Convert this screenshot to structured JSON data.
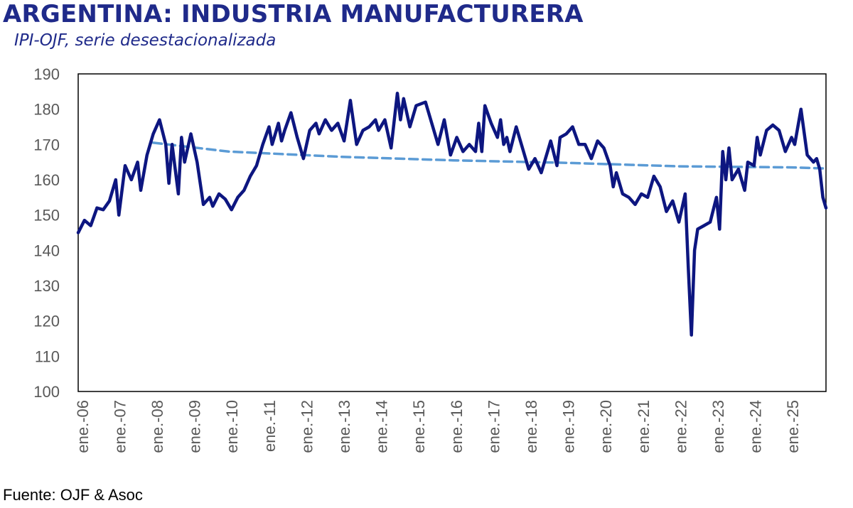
{
  "title": "ARGENTINA: INDUSTRIA MANUFACTURERA",
  "subtitle": "IPI-OJF, serie desestacionalizada",
  "source": "Fuente: OJF & Asoc",
  "colors": {
    "series": "#0d1680",
    "trend": "#5b9bd5",
    "title": "#1f2a8a"
  },
  "chart_data": {
    "type": "line",
    "ylim": [
      100,
      190
    ],
    "yticks": [
      100,
      110,
      120,
      130,
      140,
      150,
      160,
      170,
      180,
      190
    ],
    "xtick_labels": [
      "ene.-06",
      "ene.-07",
      "ene.-08",
      "ene.-09",
      "ene.-10",
      "ene.-11",
      "ene.-12",
      "ene.-13",
      "ene.-14",
      "ene.-15",
      "ene.-16",
      "ene.-17",
      "ene.-18",
      "ene.-19",
      "ene.-20",
      "ene.-21",
      "ene.-22",
      "ene.-23",
      "ene.-24",
      "ene.-25"
    ],
    "x_start": "2006-01",
    "x_end": "2025-12",
    "grid": false,
    "series": [
      {
        "style": "solid",
        "points": [
          [
            "2006-01",
            145
          ],
          [
            "2006-03",
            148.5
          ],
          [
            "2006-05",
            147
          ],
          [
            "2006-07",
            152
          ],
          [
            "2006-09",
            151.5
          ],
          [
            "2006-11",
            154
          ],
          [
            "2007-01",
            160
          ],
          [
            "2007-02",
            150
          ],
          [
            "2007-04",
            164
          ],
          [
            "2007-06",
            160
          ],
          [
            "2007-08",
            165
          ],
          [
            "2007-09",
            157
          ],
          [
            "2007-11",
            167
          ],
          [
            "2008-01",
            173
          ],
          [
            "2008-03",
            177
          ],
          [
            "2008-05",
            170
          ],
          [
            "2008-06",
            159
          ],
          [
            "2008-07",
            170
          ],
          [
            "2008-09",
            156
          ],
          [
            "2008-10",
            172
          ],
          [
            "2008-11",
            165
          ],
          [
            "2009-01",
            173
          ],
          [
            "2009-03",
            165
          ],
          [
            "2009-05",
            153
          ],
          [
            "2009-07",
            155
          ],
          [
            "2009-08",
            152.5
          ],
          [
            "2009-10",
            156
          ],
          [
            "2009-12",
            154.5
          ],
          [
            "2010-02",
            151.5
          ],
          [
            "2010-04",
            155
          ],
          [
            "2010-06",
            157
          ],
          [
            "2010-08",
            161
          ],
          [
            "2010-10",
            164
          ],
          [
            "2010-12",
            170
          ],
          [
            "2011-02",
            175
          ],
          [
            "2011-03",
            170
          ],
          [
            "2011-05",
            176
          ],
          [
            "2011-06",
            171
          ],
          [
            "2011-07",
            174
          ],
          [
            "2011-09",
            179
          ],
          [
            "2011-11",
            172
          ],
          [
            "2012-01",
            166
          ],
          [
            "2012-03",
            174
          ],
          [
            "2012-05",
            176
          ],
          [
            "2012-06",
            173
          ],
          [
            "2012-08",
            177
          ],
          [
            "2012-10",
            174
          ],
          [
            "2012-12",
            176
          ],
          [
            "2013-02",
            171
          ],
          [
            "2013-04",
            182.5
          ],
          [
            "2013-06",
            170
          ],
          [
            "2013-08",
            174
          ],
          [
            "2013-10",
            175
          ],
          [
            "2013-12",
            177
          ],
          [
            "2014-01",
            174
          ],
          [
            "2014-03",
            177
          ],
          [
            "2014-05",
            169
          ],
          [
            "2014-07",
            184.5
          ],
          [
            "2014-08",
            177
          ],
          [
            "2014-09",
            183
          ],
          [
            "2014-11",
            175
          ],
          [
            "2015-01",
            181
          ],
          [
            "2015-04",
            182
          ],
          [
            "2015-06",
            176
          ],
          [
            "2015-08",
            170
          ],
          [
            "2015-10",
            177
          ],
          [
            "2015-12",
            167
          ],
          [
            "2016-02",
            172
          ],
          [
            "2016-04",
            168
          ],
          [
            "2016-06",
            170
          ],
          [
            "2016-08",
            168
          ],
          [
            "2016-09",
            176
          ],
          [
            "2016-10",
            168
          ],
          [
            "2016-11",
            181
          ],
          [
            "2017-01",
            176
          ],
          [
            "2017-03",
            172
          ],
          [
            "2017-04",
            177
          ],
          [
            "2017-05",
            170
          ],
          [
            "2017-06",
            172
          ],
          [
            "2017-07",
            168
          ],
          [
            "2017-09",
            175
          ],
          [
            "2017-11",
            169
          ],
          [
            "2018-01",
            163
          ],
          [
            "2018-03",
            166
          ],
          [
            "2018-05",
            162
          ],
          [
            "2018-07",
            168
          ],
          [
            "2018-08",
            171
          ],
          [
            "2018-10",
            164
          ],
          [
            "2018-11",
            172
          ],
          [
            "2019-01",
            173
          ],
          [
            "2019-03",
            175
          ],
          [
            "2019-05",
            170
          ],
          [
            "2019-07",
            170
          ],
          [
            "2019-09",
            166
          ],
          [
            "2019-11",
            171
          ],
          [
            "2020-01",
            169
          ],
          [
            "2020-03",
            164
          ],
          [
            "2020-04",
            158
          ],
          [
            "2020-05",
            162
          ],
          [
            "2020-07",
            156
          ],
          [
            "2020-09",
            155
          ],
          [
            "2020-11",
            153
          ],
          [
            "2021-01",
            156
          ],
          [
            "2021-03",
            155
          ],
          [
            "2021-05",
            161
          ],
          [
            "2021-07",
            158
          ],
          [
            "2021-09",
            151
          ],
          [
            "2021-11",
            154
          ],
          [
            "2022-01",
            148
          ],
          [
            "2022-03",
            156
          ],
          [
            "2022-04",
            135
          ],
          [
            "2022-05",
            116
          ],
          [
            "2022-06",
            140
          ],
          [
            "2022-07",
            146
          ],
          [
            "2022-09",
            147
          ],
          [
            "2022-11",
            148
          ],
          [
            "2023-01",
            155
          ],
          [
            "2023-02",
            146
          ],
          [
            "2023-03",
            168
          ],
          [
            "2023-04",
            160
          ],
          [
            "2023-05",
            169
          ],
          [
            "2023-06",
            160
          ],
          [
            "2023-08",
            163
          ],
          [
            "2023-10",
            157
          ],
          [
            "2023-11",
            165
          ],
          [
            "2024-01",
            164
          ],
          [
            "2024-02",
            172
          ],
          [
            "2024-03",
            167
          ],
          [
            "2024-05",
            174
          ],
          [
            "2024-07",
            175.5
          ],
          [
            "2024-09",
            174
          ],
          [
            "2024-11",
            168
          ],
          [
            "2025-01",
            172
          ],
          [
            "2025-02",
            170
          ],
          [
            "2025-04",
            180
          ],
          [
            "2025-06",
            167
          ],
          [
            "2025-08",
            165
          ],
          [
            "2025-09",
            166
          ],
          [
            "2025-10",
            163
          ],
          [
            "2025-11",
            155
          ],
          [
            "2025-12",
            152
          ]
        ]
      },
      {
        "style": "dashed",
        "points": [
          [
            "2008-01",
            170.5
          ],
          [
            "2010-01",
            168
          ],
          [
            "2013-01",
            166.5
          ],
          [
            "2016-01",
            165.5
          ],
          [
            "2019-01",
            164.8
          ],
          [
            "2022-01",
            163.8
          ],
          [
            "2025-01",
            163.5
          ],
          [
            "2025-12",
            163.2
          ]
        ]
      }
    ]
  }
}
